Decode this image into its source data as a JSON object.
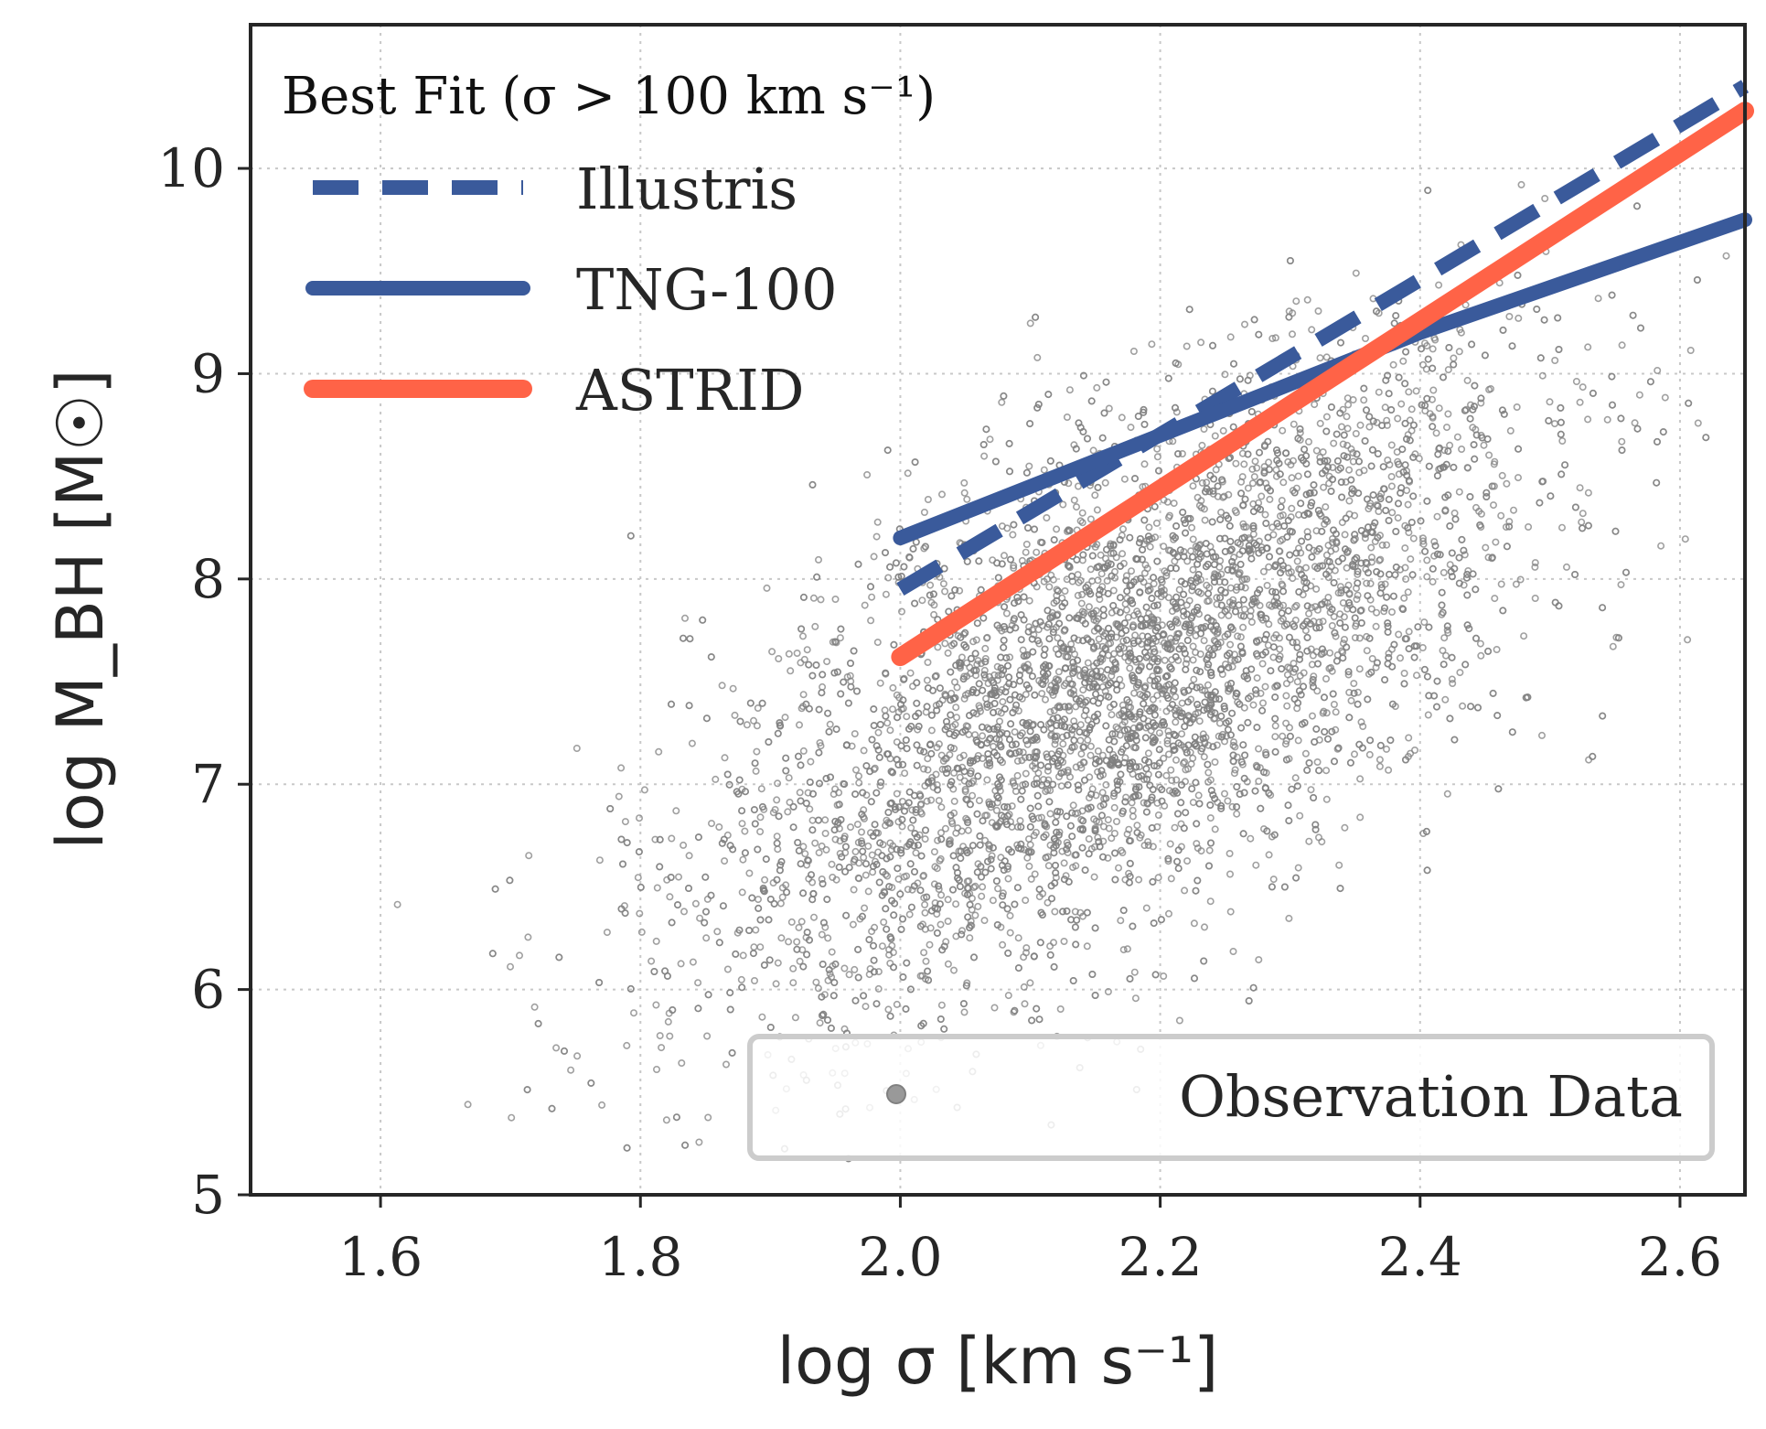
{
  "chart_data": {
    "type": "scatter",
    "xlabel": "log σ [km s⁻¹]",
    "ylabel": "log M_BH [M☉]",
    "xlim": [
      1.5,
      2.65
    ],
    "ylim": [
      5,
      10.7
    ],
    "x_ticks": [
      "1.6",
      "1.8",
      "2.0",
      "2.2",
      "2.4",
      "2.6"
    ],
    "y_ticks": [
      "5",
      "6",
      "7",
      "8",
      "9",
      "10"
    ],
    "grid": true,
    "legend_fit": {
      "title": "Best Fit (σ > 100 km s⁻¹)",
      "placement": "top-left",
      "entries": [
        "Illustris",
        "TNG-100",
        "ASTRID"
      ]
    },
    "legend_obs": {
      "placement": "bottom-right",
      "entries": [
        "Observation Data"
      ]
    },
    "series": [
      {
        "name": "Illustris",
        "kind": "line",
        "style": "dashed",
        "color": "#3a5a9b",
        "x": [
          2.0,
          2.65
        ],
        "y": [
          7.95,
          10.4
        ]
      },
      {
        "name": "TNG-100",
        "kind": "line",
        "style": "solid",
        "color": "#3a5a9b",
        "x": [
          2.0,
          2.3,
          2.4,
          2.5,
          2.65
        ],
        "y": [
          8.2,
          8.95,
          9.2,
          9.42,
          9.75
        ]
      },
      {
        "name": "ASTRID",
        "kind": "line",
        "style": "solid",
        "color": "#ff6347",
        "x": [
          2.0,
          2.65
        ],
        "y": [
          7.62,
          10.28
        ]
      },
      {
        "name": "Observation Data",
        "kind": "scatter",
        "color": "#808080",
        "distribution": {
          "x_mean": 2.17,
          "x_sd": 0.16,
          "y_intercept": 7.6,
          "y_slope": 3.2,
          "y_scatter_sd": 0.6,
          "x_range": [
            1.54,
            2.64
          ],
          "y_range": [
            5.1,
            10.3
          ],
          "count": 6000
        }
      }
    ]
  }
}
